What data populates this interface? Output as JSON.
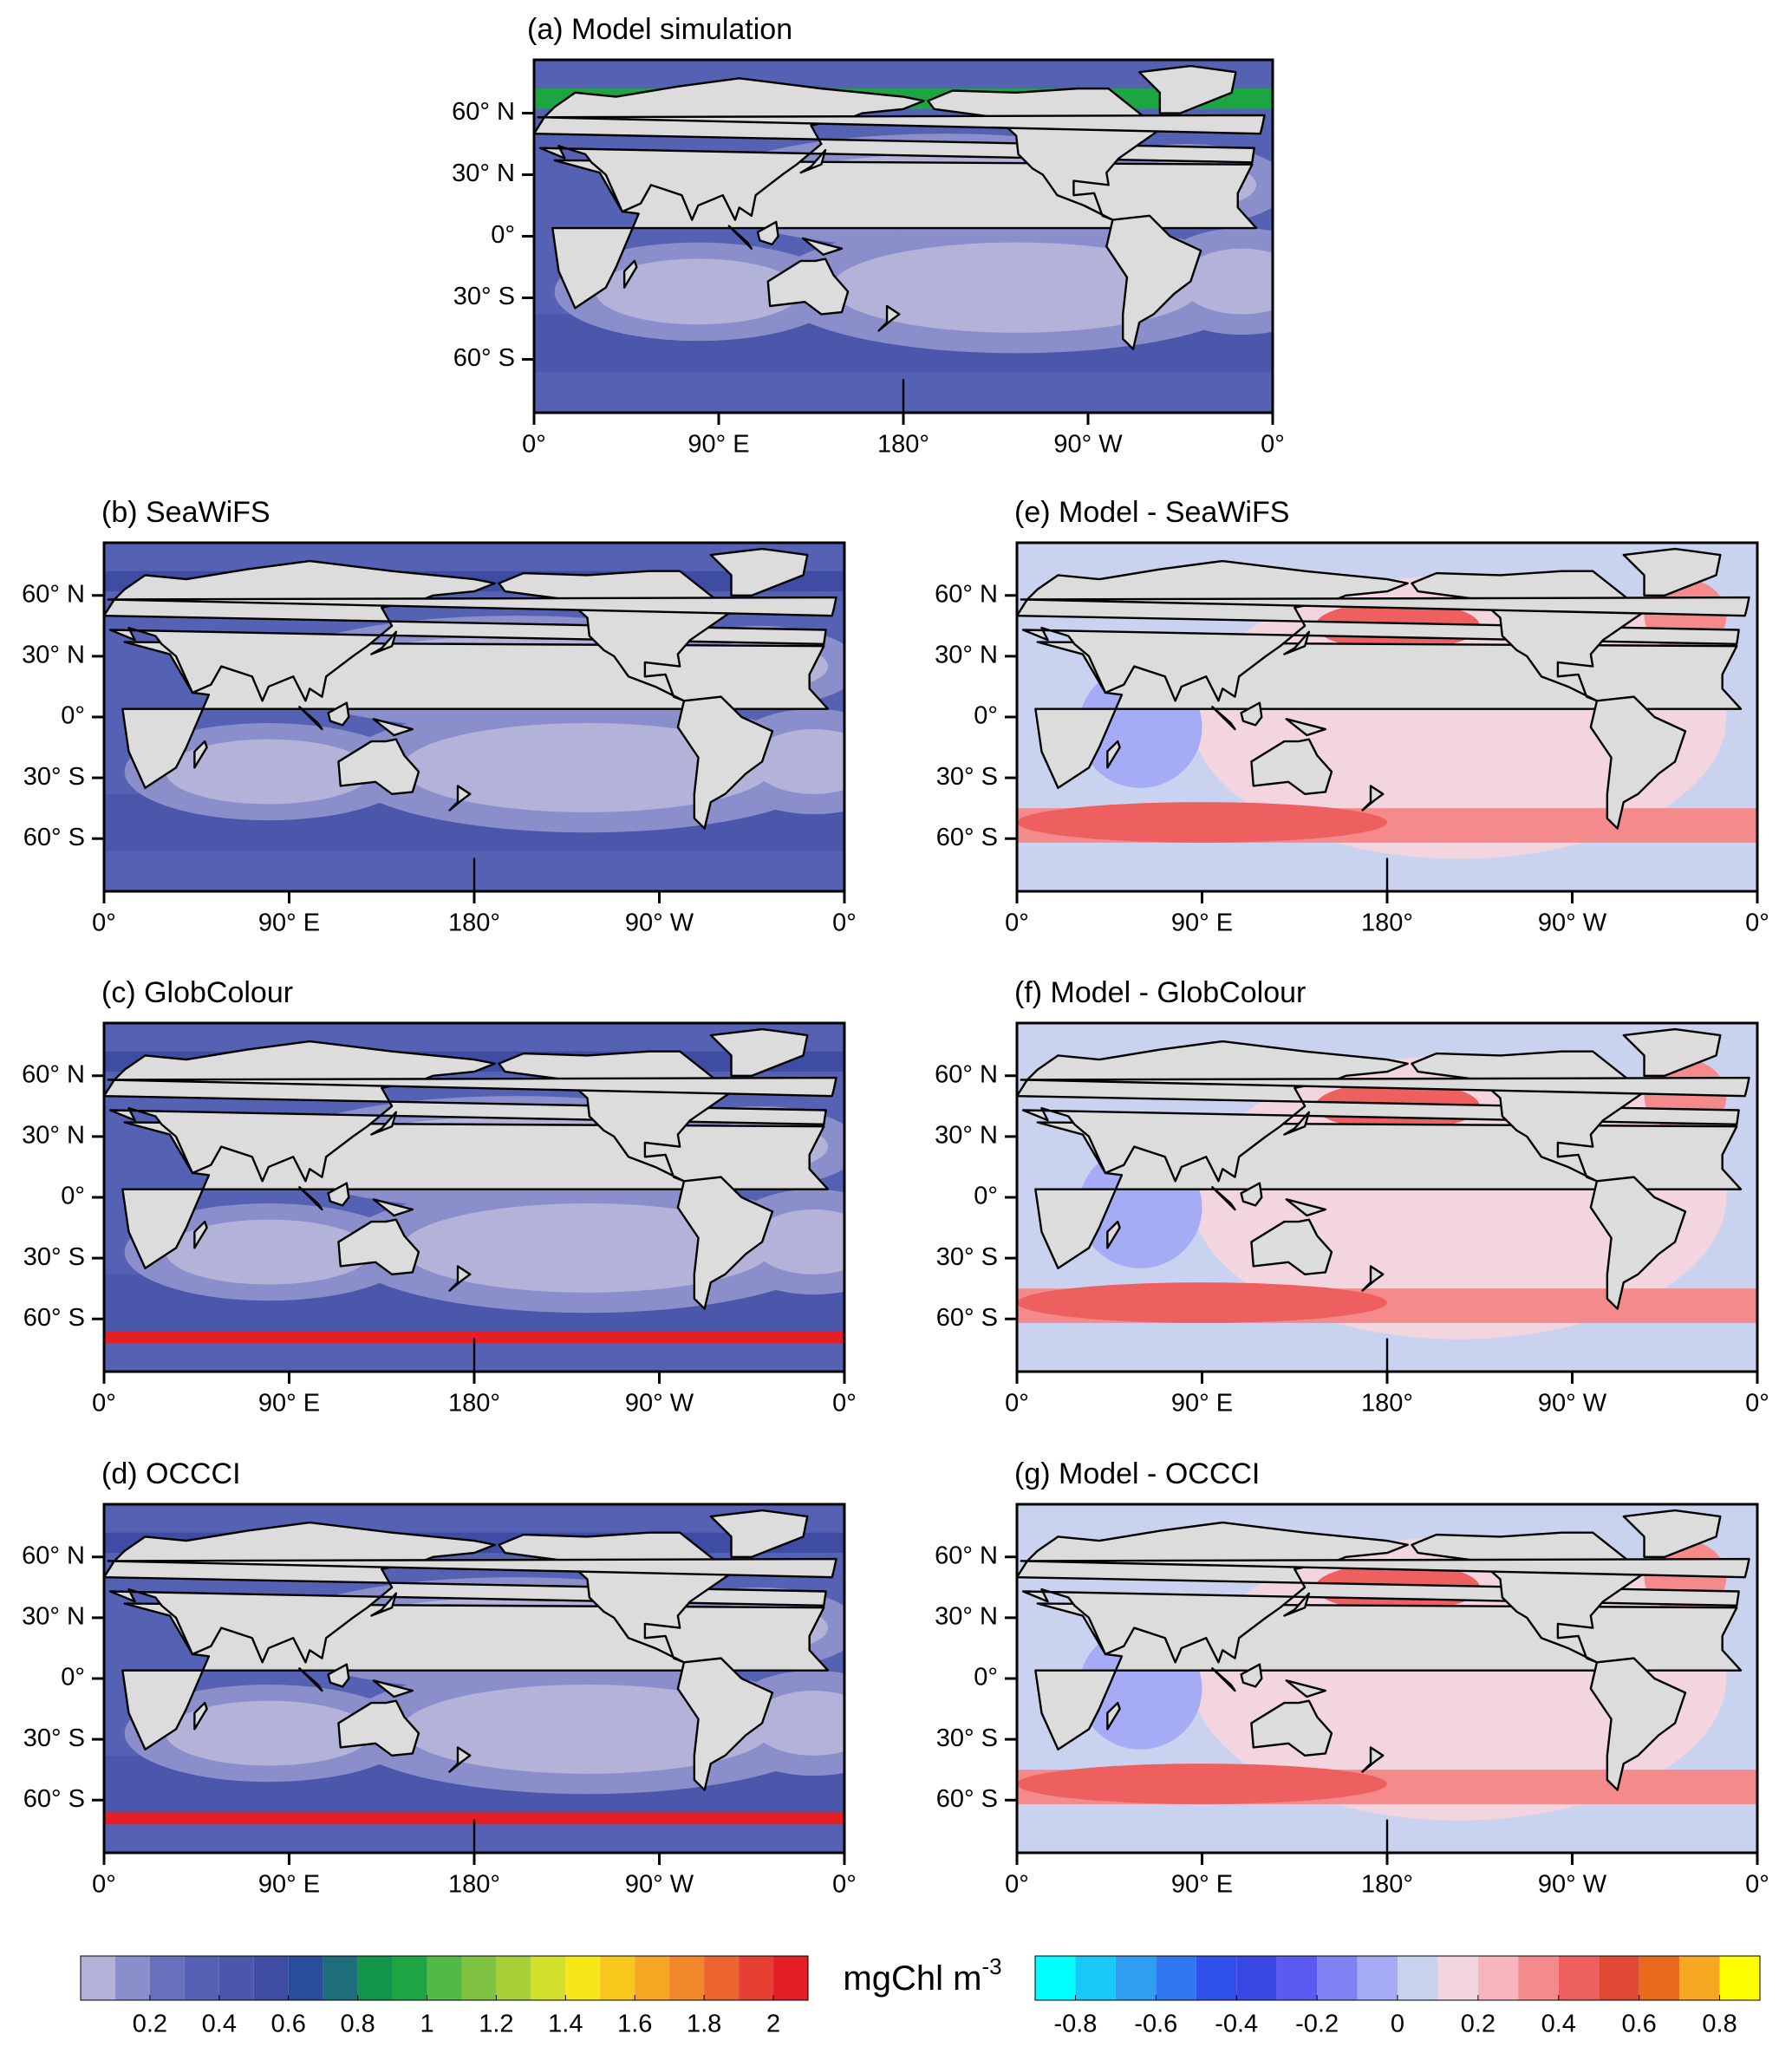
{
  "panels": [
    {
      "title": "(a) Model simulation",
      "field": "chl"
    },
    {
      "title": "(b) SeaWiFS",
      "field": "chl"
    },
    {
      "title": "(c) GlobColour",
      "field": "chl"
    },
    {
      "title": "(d) OCCCI",
      "field": "chl"
    },
    {
      "title": "(e) Model - SeaWiFS",
      "field": "diff"
    },
    {
      "title": "(f) Model - GlobColour",
      "field": "diff"
    },
    {
      "title": "(g) Model - OCCCI",
      "field": "diff"
    }
  ],
  "lonlim": [
    0,
    360
  ],
  "latlim": [
    -86,
    86
  ],
  "lon_ticks": [
    {
      "value": 0,
      "label": "0°"
    },
    {
      "value": 90,
      "label": "90° E"
    },
    {
      "value": 180,
      "label": "180°"
    },
    {
      "value": 270,
      "label": "90° W"
    },
    {
      "value": 360,
      "label": "0°"
    }
  ],
  "lat_ticks": [
    {
      "value": 60,
      "label": "60° N"
    },
    {
      "value": 30,
      "label": "30° N"
    },
    {
      "value": 0,
      "label": "0°"
    },
    {
      "value": -30,
      "label": "30° S"
    },
    {
      "value": -60,
      "label": "60° S"
    }
  ],
  "land_color": "#dcdcdc",
  "colorbars": {
    "chl": {
      "lim": [
        0,
        2.1
      ],
      "ticks": [
        0.2,
        0.4,
        0.6,
        0.8,
        1,
        1.2,
        1.4,
        1.6,
        1.8,
        2
      ],
      "colors": [
        "#b3b3da",
        "#8a8fcb",
        "#6670bb",
        "#5562b3",
        "#4a57ab",
        "#3f4ca3",
        "#2a4c9c",
        "#1d6e7a",
        "#11954a",
        "#1ea543",
        "#52b848",
        "#7fc241",
        "#a7d037",
        "#d2e02b",
        "#f5e718",
        "#f7c71b",
        "#f6a622",
        "#f2862b",
        "#ec6430",
        "#e64032",
        "#e41f26"
      ]
    },
    "diff": {
      "lim": [
        -0.9,
        0.9
      ],
      "ticks": [
        -0.8,
        -0.6,
        -0.4,
        -0.2,
        0,
        0.2,
        0.4,
        0.6,
        0.8
      ],
      "colors": [
        "#00ffff",
        "#18c8f6",
        "#2f9ef2",
        "#2f76ef",
        "#3050ea",
        "#3a48e6",
        "#5a5af0",
        "#7e82f2",
        "#a5acf5",
        "#c9d3f0",
        "#f2d5de",
        "#f8b4bc",
        "#f58a8d",
        "#ee6060",
        "#e04a34",
        "#e86a1c",
        "#f6a820",
        "#ffff00"
      ]
    }
  },
  "units": {
    "base": "mgChl m",
    "sup": "-3"
  }
}
